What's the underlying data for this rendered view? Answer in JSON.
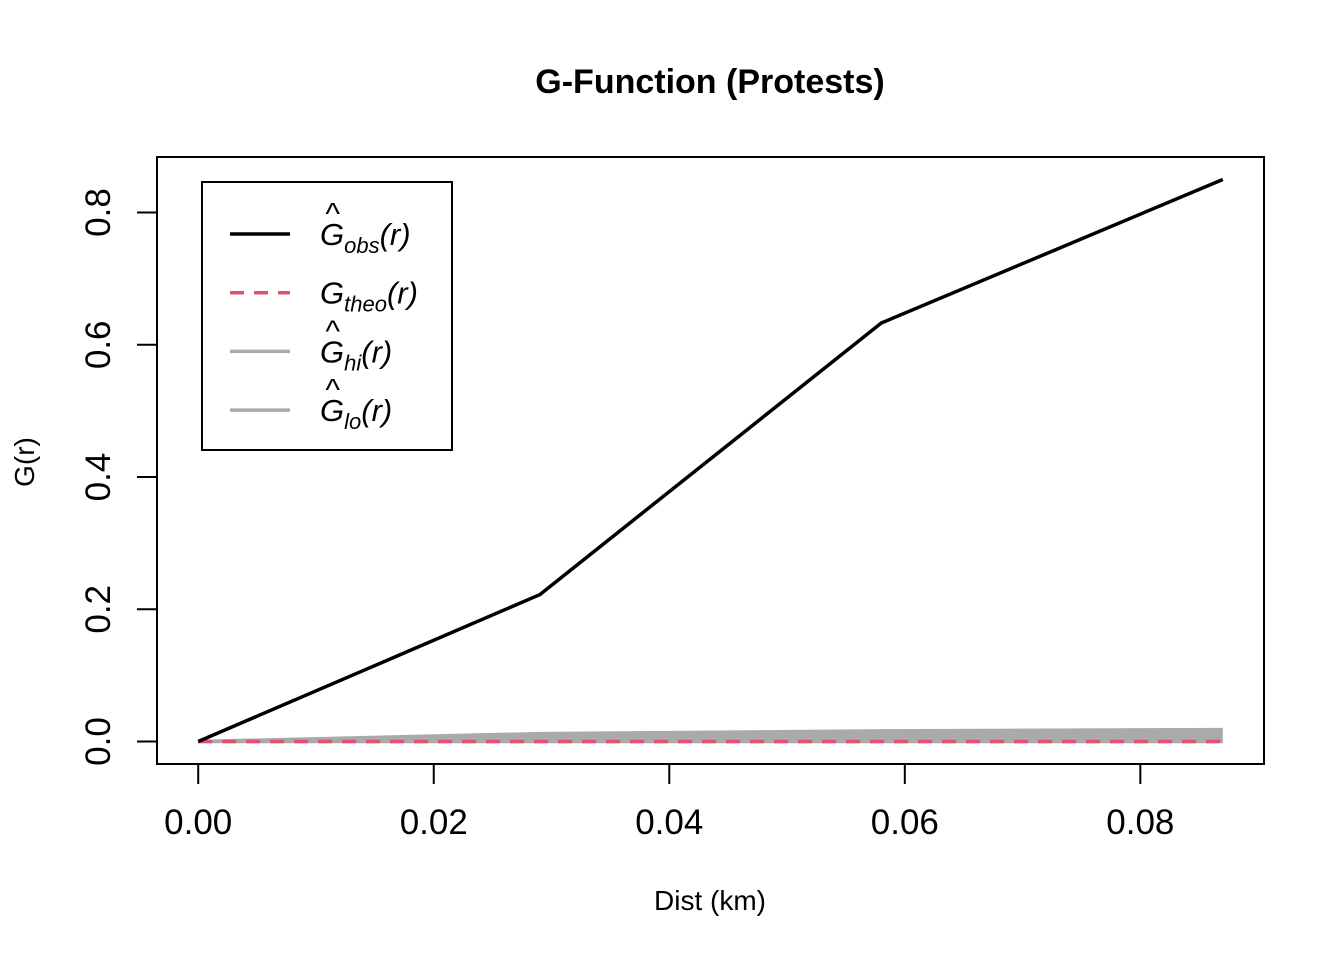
{
  "chart_data": {
    "type": "line",
    "title": "G-Function (Protests)",
    "xlabel": "Dist (km)",
    "ylabel": "G(r)",
    "xlim": [
      -0.0035,
      0.0905
    ],
    "ylim": [
      -0.034,
      0.884
    ],
    "x_ticks": [
      0.0,
      0.02,
      0.04,
      0.06,
      0.08
    ],
    "x_tick_labels": [
      "0.00",
      "0.02",
      "0.04",
      "0.06",
      "0.08"
    ],
    "y_ticks": [
      0.0,
      0.2,
      0.4,
      0.6,
      0.8
    ],
    "y_tick_labels": [
      "0.0",
      "0.2",
      "0.4",
      "0.6",
      "0.8"
    ],
    "grid": false,
    "legend_position": "top-left",
    "x": [
      0.0,
      0.029,
      0.058,
      0.087
    ],
    "series": [
      {
        "name": "Ĝobs(r)",
        "base": "G",
        "sub": "obs",
        "hat": true,
        "values": [
          0.0,
          0.222,
          0.633,
          0.85
        ],
        "color": "#000000",
        "style": "solid"
      },
      {
        "name": "Gtheo(r)",
        "base": "G",
        "sub": "theo",
        "hat": false,
        "values": [
          0.0,
          0.0,
          0.0,
          0.0
        ],
        "color": "#DF536B",
        "style": "dashed"
      },
      {
        "name": "Ĝhi(r)",
        "base": "G",
        "sub": "hi",
        "hat": true,
        "values": [
          0.0,
          0.012,
          0.016,
          0.018
        ],
        "color": "#AAAAAA",
        "style": "solid"
      },
      {
        "name": "Ĝlo(r)",
        "base": "G",
        "sub": "lo",
        "hat": true,
        "values": [
          0.0,
          0.0,
          0.0,
          0.0
        ],
        "color": "#AAAAAA",
        "style": "solid"
      }
    ],
    "envelope": {
      "upper_series": "Ĝhi(r)",
      "lower_series": "Ĝlo(r)",
      "fill_color": "#AAAAAA"
    }
  }
}
